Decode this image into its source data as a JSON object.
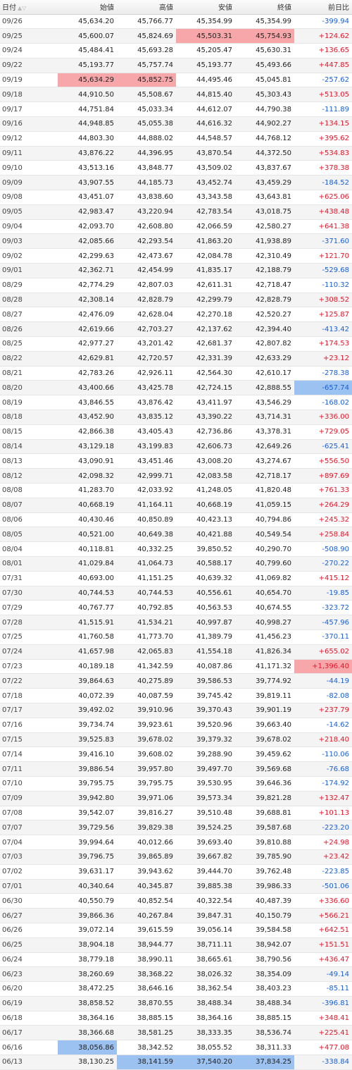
{
  "header": {
    "date": "日付",
    "open": "始値",
    "high": "高値",
    "low": "安値",
    "close": "終値",
    "change": "前日比",
    "sort_icons": "▲▽"
  },
  "rows": [
    [
      "09/26",
      "45,634.20",
      "45,766.77",
      "45,354.99",
      "45,354.99",
      "-399.94"
    ],
    [
      "09/25",
      "45,600.07",
      "45,824.69",
      "45,503.31",
      "45,754.93",
      "+124.62"
    ],
    [
      "09/24",
      "45,484.41",
      "45,693.28",
      "45,205.47",
      "45,630.31",
      "+136.65"
    ],
    [
      "09/22",
      "45,193.77",
      "45,757.74",
      "45,193.77",
      "45,493.66",
      "+447.85"
    ],
    [
      "09/19",
      "45,634.29",
      "45,852.75",
      "44,495.46",
      "45,045.81",
      "-257.62"
    ],
    [
      "09/18",
      "44,910.50",
      "45,508.67",
      "44,815.40",
      "45,303.43",
      "+513.05"
    ],
    [
      "09/17",
      "44,751.84",
      "45,033.34",
      "44,612.07",
      "44,790.38",
      "-111.89"
    ],
    [
      "09/16",
      "44,948.85",
      "45,055.38",
      "44,616.32",
      "44,902.27",
      "+134.15"
    ],
    [
      "09/12",
      "44,803.30",
      "44,888.02",
      "44,548.57",
      "44,768.12",
      "+395.62"
    ],
    [
      "09/11",
      "43,876.22",
      "44,396.95",
      "43,870.54",
      "44,372.50",
      "+534.83"
    ],
    [
      "09/10",
      "43,513.16",
      "43,848.77",
      "43,509.02",
      "43,837.67",
      "+378.38"
    ],
    [
      "09/09",
      "43,907.55",
      "44,185.73",
      "43,452.74",
      "43,459.29",
      "-184.52"
    ],
    [
      "09/08",
      "43,451.07",
      "43,838.60",
      "43,343.58",
      "43,643.81",
      "+625.06"
    ],
    [
      "09/05",
      "42,983.47",
      "43,220.94",
      "42,783.54",
      "43,018.75",
      "+438.48"
    ],
    [
      "09/04",
      "42,093.70",
      "42,608.80",
      "42,066.59",
      "42,580.27",
      "+641.38"
    ],
    [
      "09/03",
      "42,085.66",
      "42,293.54",
      "41,863.20",
      "41,938.89",
      "-371.60"
    ],
    [
      "09/02",
      "42,299.63",
      "42,473.67",
      "42,084.78",
      "42,310.49",
      "+121.70"
    ],
    [
      "09/01",
      "42,362.71",
      "42,454.99",
      "41,835.17",
      "42,188.79",
      "-529.68"
    ],
    [
      "08/29",
      "42,774.29",
      "42,807.03",
      "42,611.31",
      "42,718.47",
      "-110.32"
    ],
    [
      "08/28",
      "42,308.14",
      "42,828.79",
      "42,299.79",
      "42,828.79",
      "+308.52"
    ],
    [
      "08/27",
      "42,476.09",
      "42,628.04",
      "42,270.18",
      "42,520.27",
      "+125.87"
    ],
    [
      "08/26",
      "42,619.66",
      "42,703.27",
      "42,137.62",
      "42,394.40",
      "-413.42"
    ],
    [
      "08/25",
      "42,977.27",
      "43,201.42",
      "42,681.37",
      "42,807.82",
      "+174.53"
    ],
    [
      "08/22",
      "42,629.81",
      "42,720.57",
      "42,331.39",
      "42,633.29",
      "+23.12"
    ],
    [
      "08/21",
      "42,783.26",
      "42,926.11",
      "42,564.30",
      "42,610.17",
      "-278.38"
    ],
    [
      "08/20",
      "43,400.66",
      "43,425.78",
      "42,724.15",
      "42,888.55",
      "-657.74"
    ],
    [
      "08/19",
      "43,846.55",
      "43,876.42",
      "43,411.97",
      "43,546.29",
      "-168.02"
    ],
    [
      "08/18",
      "43,452.90",
      "43,835.12",
      "43,390.22",
      "43,714.31",
      "+336.00"
    ],
    [
      "08/15",
      "42,866.38",
      "43,405.43",
      "42,736.86",
      "43,378.31",
      "+729.05"
    ],
    [
      "08/14",
      "43,129.18",
      "43,199.83",
      "42,606.73",
      "42,649.26",
      "-625.41"
    ],
    [
      "08/13",
      "43,090.91",
      "43,451.46",
      "43,008.20",
      "43,274.67",
      "+556.50"
    ],
    [
      "08/12",
      "42,098.32",
      "42,999.71",
      "42,083.58",
      "42,718.17",
      "+897.69"
    ],
    [
      "08/08",
      "41,283.70",
      "42,033.92",
      "41,248.05",
      "41,820.48",
      "+761.33"
    ],
    [
      "08/07",
      "40,668.19",
      "41,164.11",
      "40,668.19",
      "41,059.15",
      "+264.29"
    ],
    [
      "08/06",
      "40,430.46",
      "40,850.89",
      "40,423.13",
      "40,794.86",
      "+245.32"
    ],
    [
      "08/05",
      "40,521.00",
      "40,649.38",
      "40,421.88",
      "40,549.54",
      "+258.84"
    ],
    [
      "08/04",
      "40,118.81",
      "40,332.25",
      "39,850.52",
      "40,290.70",
      "-508.90"
    ],
    [
      "08/01",
      "41,029.84",
      "41,064.73",
      "40,588.17",
      "40,799.60",
      "-270.22"
    ],
    [
      "07/31",
      "40,693.00",
      "41,151.25",
      "40,639.32",
      "41,069.82",
      "+415.12"
    ],
    [
      "07/30",
      "40,744.53",
      "40,744.53",
      "40,556.61",
      "40,654.70",
      "-19.85"
    ],
    [
      "07/29",
      "40,767.77",
      "40,792.85",
      "40,563.53",
      "40,674.55",
      "-323.72"
    ],
    [
      "07/28",
      "41,515.91",
      "41,534.21",
      "40,997.87",
      "40,998.27",
      "-457.96"
    ],
    [
      "07/25",
      "41,760.58",
      "41,773.70",
      "41,389.79",
      "41,456.23",
      "-370.11"
    ],
    [
      "07/24",
      "41,657.98",
      "42,065.83",
      "41,554.18",
      "41,826.34",
      "+655.02"
    ],
    [
      "07/23",
      "40,189.18",
      "41,342.59",
      "40,087.86",
      "41,171.32",
      "+1,396.40"
    ],
    [
      "07/22",
      "39,864.63",
      "40,275.89",
      "39,586.53",
      "39,774.92",
      "-44.19"
    ],
    [
      "07/18",
      "40,072.39",
      "40,087.59",
      "39,745.42",
      "39,819.11",
      "-82.08"
    ],
    [
      "07/17",
      "39,492.02",
      "39,910.96",
      "39,370.43",
      "39,901.19",
      "+237.79"
    ],
    [
      "07/16",
      "39,734.74",
      "39,923.61",
      "39,520.96",
      "39,663.40",
      "-14.62"
    ],
    [
      "07/15",
      "39,525.83",
      "39,678.02",
      "39,379.32",
      "39,678.02",
      "+218.40"
    ],
    [
      "07/14",
      "39,416.10",
      "39,608.02",
      "39,288.90",
      "39,459.62",
      "-110.06"
    ],
    [
      "07/11",
      "39,886.54",
      "39,957.80",
      "39,497.70",
      "39,569.68",
      "-76.68"
    ],
    [
      "07/10",
      "39,795.75",
      "39,795.75",
      "39,530.95",
      "39,646.36",
      "-174.92"
    ],
    [
      "07/09",
      "39,942.80",
      "39,971.06",
      "39,573.34",
      "39,821.28",
      "+132.47"
    ],
    [
      "07/08",
      "39,542.07",
      "39,816.27",
      "39,510.48",
      "39,688.81",
      "+101.13"
    ],
    [
      "07/07",
      "39,729.56",
      "39,829.38",
      "39,524.25",
      "39,587.68",
      "-223.20"
    ],
    [
      "07/04",
      "39,994.64",
      "40,012.66",
      "39,693.40",
      "39,810.88",
      "+24.98"
    ],
    [
      "07/03",
      "39,796.75",
      "39,865.89",
      "39,667.82",
      "39,785.90",
      "+23.42"
    ],
    [
      "07/02",
      "39,631.17",
      "39,943.62",
      "39,444.70",
      "39,762.48",
      "-223.85"
    ],
    [
      "07/01",
      "40,340.64",
      "40,345.87",
      "39,885.38",
      "39,986.33",
      "-501.06"
    ],
    [
      "06/30",
      "40,550.79",
      "40,852.54",
      "40,322.54",
      "40,487.39",
      "+336.60"
    ],
    [
      "06/27",
      "39,866.36",
      "40,267.84",
      "39,847.31",
      "40,150.79",
      "+566.21"
    ],
    [
      "06/26",
      "39,072.14",
      "39,615.59",
      "39,056.14",
      "39,584.58",
      "+642.51"
    ],
    [
      "06/25",
      "38,904.18",
      "38,944.77",
      "38,711.11",
      "38,942.07",
      "+151.51"
    ],
    [
      "06/24",
      "38,779.18",
      "38,990.11",
      "38,665.61",
      "38,790.56",
      "+436.47"
    ],
    [
      "06/23",
      "38,260.69",
      "38,368.22",
      "38,026.32",
      "38,354.09",
      "-49.14"
    ],
    [
      "06/20",
      "38,472.25",
      "38,646.16",
      "38,362.54",
      "38,403.23",
      "-85.11"
    ],
    [
      "06/19",
      "38,858.52",
      "38,870.55",
      "38,488.34",
      "38,488.34",
      "-396.81"
    ],
    [
      "06/18",
      "38,364.16",
      "38,885.15",
      "38,364.16",
      "38,885.15",
      "+348.41"
    ],
    [
      "06/17",
      "38,366.68",
      "38,581.25",
      "38,333.35",
      "38,536.74",
      "+225.41"
    ],
    [
      "06/16",
      "38,056.86",
      "38,342.52",
      "38,055.52",
      "38,311.33",
      "+477.08"
    ],
    [
      "06/13",
      "38,130.25",
      "38,141.59",
      "37,540.20",
      "37,834.25",
      "-338.84"
    ]
  ],
  "highlights": {
    "09/25": {
      "3": "red",
      "4": "red"
    },
    "09/19": {
      "1": "red",
      "2": "red"
    },
    "08/20": {
      "5": "blue"
    },
    "07/23": {
      "5": "red"
    },
    "06/16": {
      "1": "blue"
    },
    "06/13": {
      "2": "blue",
      "3": "blue",
      "4": "blue"
    }
  },
  "colors": {
    "positive": "#e0162b",
    "negative": "#1a5fd0",
    "highlight_red": "#f7a7aa",
    "highlight_blue": "#9cc2f2"
  }
}
